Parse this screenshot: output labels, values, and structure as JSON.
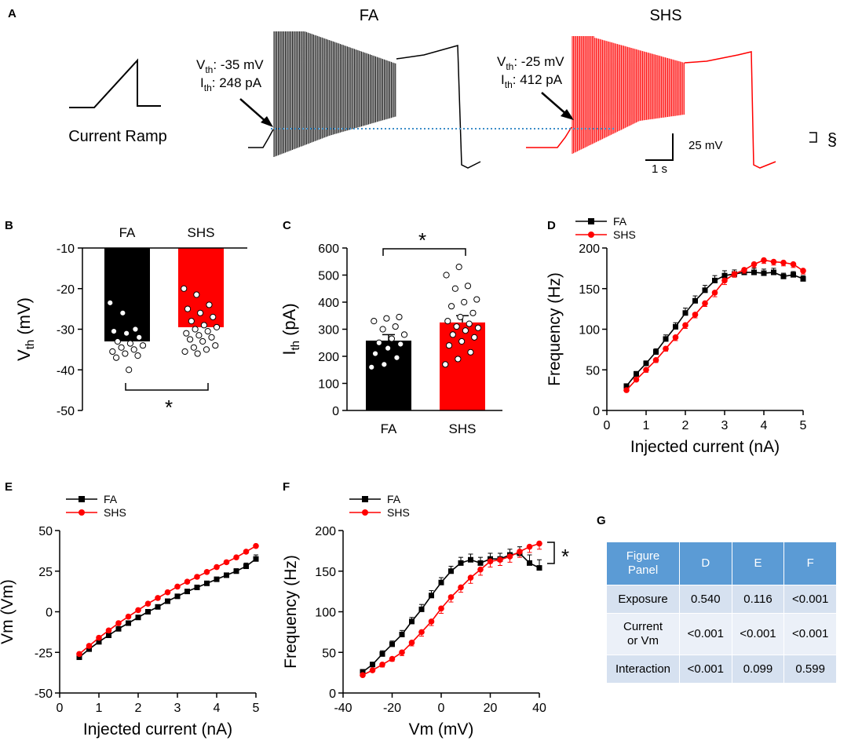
{
  "colors": {
    "fa": "#000000",
    "shs": "#ff0000",
    "dotted": "#3c8dc8",
    "table_head": "#5b9bd5"
  },
  "panel_a": {
    "letter": "A",
    "title_fa": "FA",
    "title_shs": "SHS",
    "ramp_label": "Current Ramp",
    "fa_vth_prefix": "V",
    "fa_vth_sub": "th",
    "fa_vth_value": ": -35 mV",
    "fa_ith_prefix": "I",
    "fa_ith_sub": "th",
    "fa_ith_value": ": 248 pA",
    "shs_vth_prefix": "V",
    "shs_vth_sub": "th",
    "shs_vth_value": ": -25 mV",
    "shs_ith_prefix": "I",
    "shs_ith_sub": "th",
    "shs_ith_value": ": 412 pA",
    "scale_v": "25 mV",
    "scale_t": "1 s"
  },
  "chart_data": [
    {
      "panel": "B",
      "type": "bar",
      "categories": [
        "FA",
        "SHS"
      ],
      "values": [
        -33,
        -29.5
      ],
      "baseline": -10,
      "ylabel_main": "V",
      "ylabel_sub": "th",
      "ylabel_unit": " (mV)",
      "ylim": [
        -50,
        -10
      ],
      "yticks": [
        "-10",
        "-20",
        "-30",
        "-40",
        "-50"
      ],
      "significance": "*",
      "points": {
        "FA": [
          -23.5,
          -26,
          -30,
          -30.5,
          -31,
          -32,
          -33,
          -33.5,
          -34,
          -34.5,
          -35,
          -35.5,
          -36,
          -36.5,
          -37,
          -40
        ],
        "SHS": [
          -20,
          -21.5,
          -24,
          -25,
          -26,
          -27,
          -28,
          -29,
          -29.5,
          -30,
          -30.5,
          -31,
          -31.5,
          -32,
          -32.5,
          -33,
          -34,
          -34.5,
          -35,
          -35.5,
          -36
        ]
      }
    },
    {
      "panel": "C",
      "type": "bar",
      "categories": [
        "FA",
        "SHS"
      ],
      "values": [
        258,
        325
      ],
      "errors": [
        22,
        25
      ],
      "ylabel_main": "I",
      "ylabel_sub": "th",
      "ylabel_unit": " (pA)",
      "ylim": [
        0,
        600
      ],
      "yticks": [
        "0",
        "100",
        "200",
        "300",
        "400",
        "500",
        "600"
      ],
      "significance": "*",
      "points": {
        "FA": [
          160,
          170,
          195,
          210,
          230,
          245,
          250,
          265,
          280,
          300,
          310,
          330,
          340,
          345
        ],
        "SHS": [
          170,
          190,
          215,
          240,
          255,
          270,
          280,
          295,
          305,
          310,
          320,
          330,
          345,
          360,
          385,
          400,
          410,
          450,
          460,
          500,
          530
        ]
      }
    },
    {
      "panel": "D",
      "type": "line",
      "xlabel": "Injected current (nA)",
      "ylabel": "Frequency (Hz)",
      "xlim": [
        0,
        5
      ],
      "ylim": [
        0,
        200
      ],
      "xticks": [
        "0",
        "1",
        "2",
        "3",
        "4",
        "5"
      ],
      "yticks": [
        "0",
        "50",
        "100",
        "150",
        "200"
      ],
      "annotation": "§",
      "x": [
        0.5,
        0.75,
        1.0,
        1.25,
        1.5,
        1.75,
        2.0,
        2.25,
        2.5,
        2.75,
        3.0,
        3.25,
        3.5,
        3.75,
        4.0,
        4.25,
        4.5,
        4.75,
        5.0
      ],
      "series": [
        {
          "name": "FA",
          "values": [
            30,
            45,
            58,
            72,
            88,
            103,
            120,
            135,
            148,
            160,
            166,
            168,
            170,
            170,
            169,
            170,
            165,
            167,
            162
          ],
          "errors": [
            2,
            3,
            3,
            4,
            5,
            5,
            6,
            6,
            6,
            6,
            6,
            5,
            5,
            5,
            5,
            5,
            4,
            4,
            4
          ]
        },
        {
          "name": "SHS",
          "values": [
            25,
            38,
            50,
            62,
            76,
            90,
            105,
            118,
            132,
            145,
            160,
            168,
            173,
            180,
            185,
            183,
            182,
            180,
            172
          ],
          "errors": [
            2,
            2,
            3,
            3,
            3,
            4,
            4,
            4,
            4,
            5,
            5,
            4,
            4,
            4,
            4,
            4,
            4,
            4,
            4
          ]
        }
      ]
    },
    {
      "panel": "E",
      "type": "line",
      "xlabel": "Injected current (nA)",
      "ylabel": "Vm (Vm)",
      "xlim": [
        0,
        5
      ],
      "ylim": [
        -50,
        50
      ],
      "xticks": [
        "0",
        "1",
        "2",
        "3",
        "4",
        "5"
      ],
      "yticks": [
        "50",
        "25",
        "0",
        "-25",
        "-50"
      ],
      "x": [
        0.5,
        0.75,
        1.0,
        1.25,
        1.5,
        1.75,
        2.0,
        2.25,
        2.5,
        2.75,
        3.0,
        3.25,
        3.5,
        3.75,
        4.0,
        4.25,
        4.5,
        4.75,
        5.0
      ],
      "series": [
        {
          "name": "FA",
          "values": [
            -28,
            -23,
            -18.5,
            -14.5,
            -10.5,
            -7,
            -3.5,
            0,
            3,
            6.5,
            9.5,
            12.5,
            15,
            17.5,
            20,
            22.5,
            25,
            28,
            32.5
          ],
          "errors": [
            1,
            1,
            1,
            1,
            1,
            1,
            1,
            1,
            1,
            1,
            1,
            1,
            1,
            1,
            1,
            1,
            1.5,
            2,
            2.5
          ]
        },
        {
          "name": "SHS",
          "values": [
            -26,
            -21,
            -16,
            -11.5,
            -7,
            -3,
            1,
            5,
            8.5,
            12,
            15.5,
            18.5,
            21.5,
            24.5,
            27.5,
            30.5,
            33.5,
            37,
            40.5
          ],
          "errors": [
            1,
            1,
            1,
            1,
            1,
            1,
            1,
            1,
            1,
            1,
            1,
            1,
            1,
            1,
            1,
            1,
            1,
            1,
            1
          ]
        }
      ]
    },
    {
      "panel": "F",
      "type": "line",
      "xlabel": "Vm (mV)",
      "ylabel": "Frequency (Hz)",
      "xlim": [
        -40,
        40
      ],
      "ylim": [
        0,
        200
      ],
      "xticks": [
        "-40",
        "-20",
        "0",
        "20",
        "40"
      ],
      "yticks": [
        "0",
        "50",
        "100",
        "150",
        "200"
      ],
      "annotation": "*",
      "series": [
        {
          "name": "FA",
          "x": [
            -32,
            -28,
            -24,
            -20,
            -16,
            -12,
            -8,
            -4,
            0,
            4,
            8,
            12,
            16,
            20,
            24,
            28,
            32,
            36,
            40
          ],
          "values": [
            26,
            35,
            48,
            60,
            72,
            88,
            103,
            120,
            136,
            150,
            160,
            164,
            160,
            165,
            165,
            170,
            172,
            160,
            154
          ],
          "errors": [
            3,
            3,
            4,
            4,
            5,
            5,
            6,
            6,
            6,
            6,
            7,
            7,
            7,
            7,
            7,
            7,
            8,
            10,
            10
          ]
        },
        {
          "name": "SHS",
          "x": [
            -32,
            -28,
            -24,
            -20,
            -16,
            -12,
            -8,
            -4,
            0,
            4,
            8,
            12,
            16,
            20,
            24,
            28,
            32,
            36,
            40
          ],
          "values": [
            22,
            28,
            35,
            42,
            50,
            62,
            75,
            88,
            104,
            118,
            130,
            142,
            152,
            162,
            164,
            168,
            174,
            180,
            184
          ],
          "errors": [
            2,
            2,
            3,
            3,
            4,
            4,
            5,
            5,
            6,
            6,
            6,
            7,
            7,
            7,
            7,
            7,
            7,
            7,
            7
          ]
        }
      ]
    }
  ],
  "panel_letters": {
    "b": "B",
    "c": "C",
    "d": "D",
    "e": "E",
    "f": "F",
    "g": "G"
  },
  "table": {
    "headers": [
      "Figure\nPanel",
      "D",
      "E",
      "F"
    ],
    "header_line1": "Figure",
    "header_line2": "Panel",
    "rows": [
      {
        "label": "Exposure",
        "d": "0.540",
        "e": "0.116",
        "f": "<0.001"
      },
      {
        "label_line1": "Current",
        "label_line2": "or Vm",
        "d": "<0.001",
        "e": "<0.001",
        "f": "<0.001"
      },
      {
        "label": "Interaction",
        "d": "<0.001",
        "e": "0.099",
        "f": "0.599"
      }
    ]
  }
}
